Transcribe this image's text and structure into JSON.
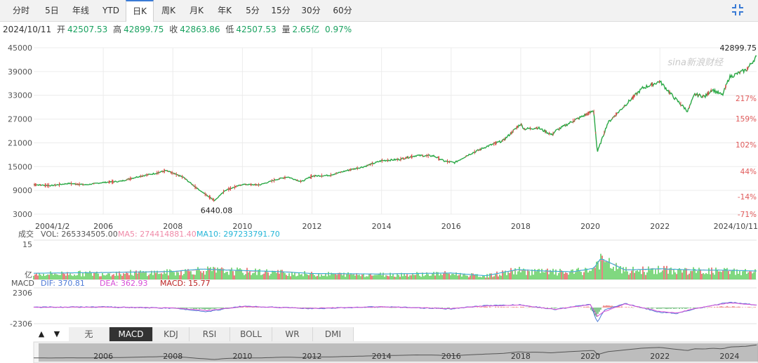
{
  "tabs": [
    "分时",
    "5日",
    "年线",
    "YTD",
    "日K",
    "周K",
    "月K",
    "年K",
    "5分",
    "15分",
    "30分",
    "60分"
  ],
  "active_tab": "日K",
  "quote": {
    "date": "2024/10/11",
    "open_label": "开",
    "open": "42507.53",
    "high_label": "高",
    "high": "42899.75",
    "close_label": "收",
    "close": "42863.86",
    "low_label": "低",
    "low": "42507.53",
    "volume_label": "量",
    "volume": "2.65亿",
    "change_pct": "0.97%"
  },
  "watermark": "sina新浪财经",
  "colors": {
    "up": "#e24b4b",
    "down": "#1aa33a",
    "price_line": "#2aa845",
    "dif": "#4d7bd6",
    "dea": "#d64dd6",
    "ma5": "#f08aa8",
    "ma10": "#25b6d8"
  },
  "chart_data": {
    "type": "line",
    "price": {
      "y_ticks": [
        "45000",
        "39000",
        "33000",
        "27000",
        "21000",
        "15000",
        "9000",
        "3000"
      ],
      "right_pct_ticks": [
        "217%",
        "159%",
        "102%",
        "44%",
        "-14%",
        "-71%"
      ],
      "x_tick_labels": [
        "2004/1/2",
        "2006",
        "2008",
        "2010",
        "2012",
        "2014",
        "2016",
        "2018",
        "2020",
        "2022",
        "2024/10/11"
      ],
      "max_label": "42899.75",
      "min_label": "6440.08",
      "x": [
        2004.0,
        2004.5,
        2005.0,
        2005.5,
        2006.0,
        2006.5,
        2007.0,
        2007.5,
        2007.8,
        2008.3,
        2008.7,
        2009.0,
        2009.2,
        2009.5,
        2010.0,
        2010.5,
        2011.0,
        2011.3,
        2011.7,
        2012.0,
        2012.5,
        2013.0,
        2013.5,
        2014.0,
        2014.5,
        2015.0,
        2015.5,
        2015.8,
        2016.1,
        2016.5,
        2017.0,
        2017.5,
        2018.0,
        2018.1,
        2018.5,
        2018.9,
        2019.0,
        2019.5,
        2020.1,
        2020.2,
        2020.5,
        2021.0,
        2021.5,
        2022.0,
        2022.4,
        2022.8,
        2023.0,
        2023.3,
        2023.5,
        2023.8,
        2024.0,
        2024.5,
        2024.78
      ],
      "values": [
        10450,
        10200,
        10750,
        10400,
        11000,
        11300,
        12450,
        13300,
        14000,
        12300,
        9500,
        7600,
        6440,
        9000,
        10500,
        10400,
        11800,
        12400,
        11200,
        12600,
        12800,
        14000,
        15000,
        16500,
        16800,
        17800,
        17700,
        16400,
        16000,
        18000,
        20000,
        21600,
        25800,
        24500,
        24800,
        23000,
        24000,
        26500,
        29100,
        18591,
        26000,
        30500,
        34800,
        36500,
        32500,
        29000,
        33200,
        32700,
        34500,
        33000,
        37600,
        39500,
        42899
      ]
    },
    "volume": {
      "name": "成交",
      "vol_label": "VOL: 265334505.00",
      "ma5_label": "MA5: 274414881.40",
      "ma10_label": "MA10: 297233791.70",
      "y_ticks": [
        "15",
        "亿"
      ],
      "unit": "亿",
      "x": [
        2004.0,
        2006.0,
        2008.0,
        2008.8,
        2009.5,
        2011.0,
        2012.0,
        2014.0,
        2016.0,
        2017.0,
        2017.9,
        2018.5,
        2019.5,
        2020.1,
        2020.3,
        2021.0,
        2022.0,
        2023.0,
        2024.0,
        2024.78
      ],
      "values": [
        2.5,
        2.8,
        3.2,
        4.2,
        3.8,
        3.2,
        2.4,
        2.2,
        2.6,
        1.5,
        4.0,
        3.5,
        3.1,
        4.5,
        8.5,
        3.8,
        4.3,
        3.8,
        3.7,
        3.4
      ]
    },
    "macd": {
      "name": "MACD",
      "dif_label": "DIF: 370.81",
      "dea_label": "DEA: 362.93",
      "macd_label": "MACD: 15.77",
      "y_ticks": [
        "2306",
        "-2306"
      ],
      "x": [
        2004.0,
        2006.0,
        2008.0,
        2008.5,
        2009.0,
        2010.0,
        2012.0,
        2014.0,
        2016.0,
        2017.0,
        2018.0,
        2019.0,
        2020.0,
        2020.2,
        2020.4,
        2021.0,
        2022.0,
        2022.5,
        2023.0,
        2024.0,
        2024.78
      ],
      "dif": [
        50,
        80,
        -100,
        -350,
        -600,
        200,
        -150,
        120,
        -200,
        300,
        400,
        -300,
        500,
        -2200,
        -400,
        600,
        -700,
        -900,
        -200,
        800,
        371
      ],
      "dea": [
        40,
        70,
        -60,
        -250,
        -450,
        150,
        -120,
        100,
        -150,
        250,
        350,
        -250,
        450,
        -1300,
        -600,
        550,
        -600,
        -800,
        -150,
        700,
        363
      ]
    },
    "navigator": {
      "labels": [
        "2006",
        "2008",
        "2010",
        "2012",
        "2014",
        "2016",
        "2018",
        "2020",
        "2022",
        "2024"
      ]
    }
  },
  "indicators": {
    "arrows": [
      "▲",
      "▼"
    ],
    "tabs": [
      "无",
      "MACD",
      "KDJ",
      "RSI",
      "BOLL",
      "WR",
      "DMI"
    ],
    "active": "MACD"
  }
}
